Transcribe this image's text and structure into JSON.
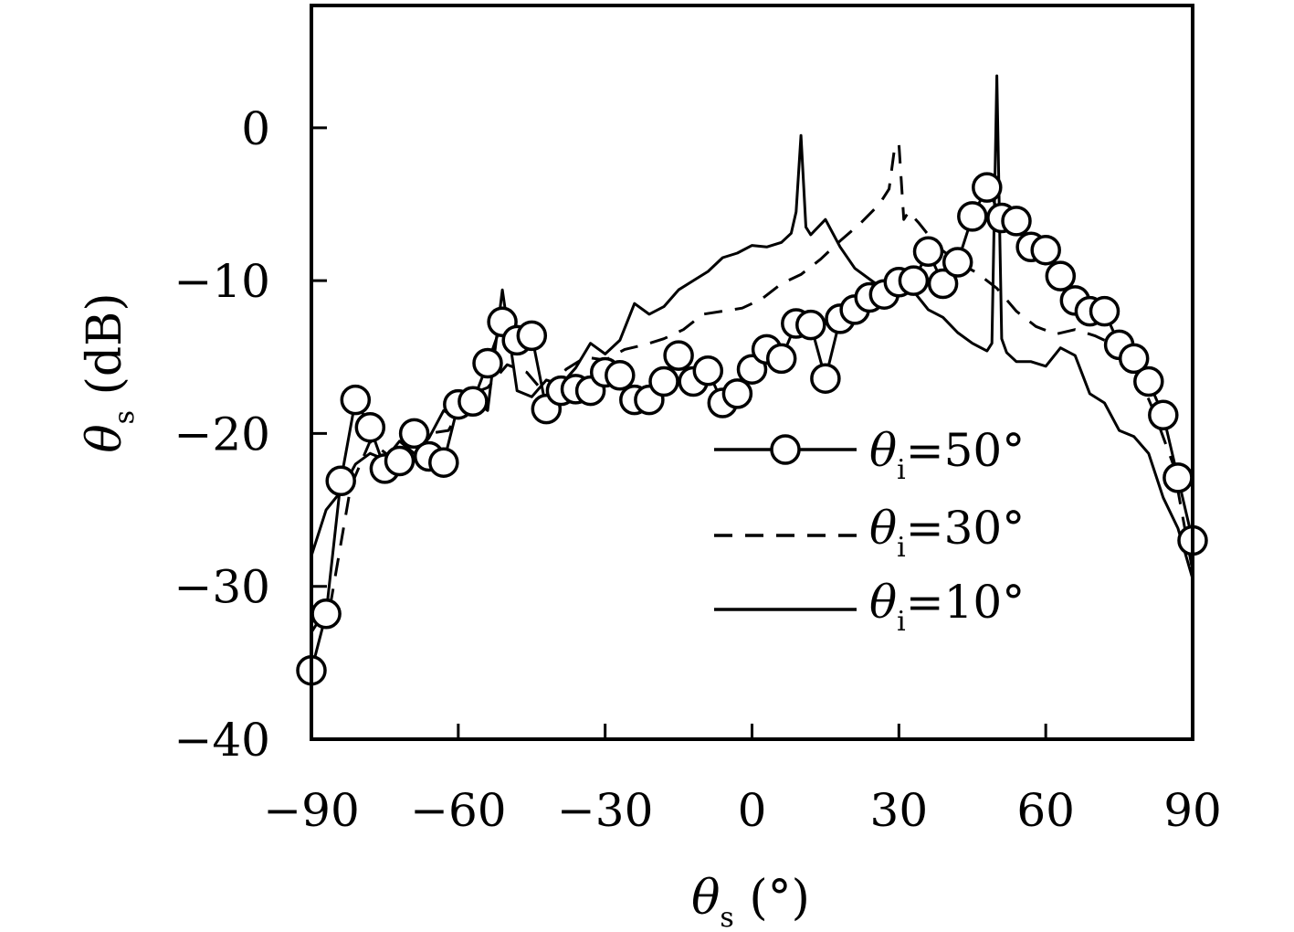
{
  "chart_data": {
    "type": "line",
    "xlabel": {
      "symbol": "θ",
      "sub": "s",
      "unit": " (°)"
    },
    "ylabel": {
      "symbol": "θ",
      "sub": "s",
      "unit": " (dB)"
    },
    "xlim": [
      -90,
      90
    ],
    "ylim": [
      -40,
      8
    ],
    "xticks": [
      -90,
      -60,
      -30,
      0,
      30,
      60,
      90
    ],
    "xtick_labels": [
      "−90",
      "−60",
      "−30",
      "0",
      "30",
      "60",
      "90"
    ],
    "yticks": [
      -40,
      -30,
      -20,
      -10,
      0
    ],
    "ytick_labels": [
      "−40",
      "−30",
      "−20",
      "−10",
      "0"
    ],
    "grid": false,
    "legend_position": "right",
    "colors": {
      "line": "#000000",
      "marker_fill": "#ffffff"
    },
    "series": [
      {
        "name_symbol": "θ",
        "name_sub": "i",
        "name_value": "=50°",
        "style": "solid-circle",
        "x": [
          -90,
          -87,
          -84,
          -81,
          -78,
          -75,
          -72,
          -69,
          -66,
          -63,
          -60,
          -57,
          -54,
          -51,
          -48,
          -45,
          -42,
          -39,
          -36,
          -33,
          -30,
          -27,
          -24,
          -21,
          -18,
          -15,
          -12,
          -9,
          -6,
          -3,
          0,
          3,
          6,
          9,
          12,
          15,
          18,
          21,
          24,
          27,
          30,
          33,
          36,
          39,
          42,
          45,
          48,
          51,
          54,
          57,
          60,
          63,
          66,
          69,
          72,
          75,
          78,
          81,
          84,
          87,
          90
        ],
        "y": [
          -35.5,
          -31.8,
          -23.1,
          -17.8,
          -19.6,
          -22.3,
          -21.8,
          -20,
          -21.5,
          -21.9,
          -18.1,
          -17.9,
          -15.4,
          -12.7,
          -13.9,
          -13.6,
          -18.4,
          -17.2,
          -17.1,
          -17.2,
          -16,
          -16.2,
          -17.8,
          -17.8,
          -16.6,
          -14.9,
          -16.6,
          -15.9,
          -18,
          -17.4,
          -15.8,
          -14.5,
          -15.1,
          -12.8,
          -12.9,
          -16.4,
          -12.5,
          -11.9,
          -11.1,
          -10.9,
          -10.1,
          -10,
          -8.1,
          -10.2,
          -8.8,
          -5.8,
          -3.9,
          -5.9,
          -6.1,
          -7.8,
          -8,
          -9.7,
          -11.3,
          -12,
          -12,
          -14.2,
          -15.1,
          -16.6,
          -18.8,
          -22.9,
          -27
        ]
      },
      {
        "name_symbol": "θ",
        "name_sub": "i",
        "name_value": "=30°",
        "style": "dashed",
        "x": [
          -90,
          -86,
          -82,
          -78,
          -74,
          -70,
          -66,
          -62,
          -58,
          -54,
          -50,
          -46,
          -42,
          -38,
          -34,
          -30,
          -26,
          -22,
          -18,
          -14,
          -10,
          -6,
          -2,
          2,
          6,
          10,
          14,
          18,
          22,
          26,
          28,
          29,
          30,
          31,
          32,
          34,
          38,
          42,
          46,
          50,
          54,
          58,
          62,
          66,
          70,
          74,
          78,
          82,
          86,
          90
        ],
        "y": [
          -33,
          -31,
          -23.5,
          -20.5,
          -21.5,
          -20.8,
          -20,
          -19.8,
          -17.5,
          -17,
          -15.5,
          -16,
          -17.5,
          -15.8,
          -15,
          -15.2,
          -14.5,
          -14.2,
          -13.8,
          -13.2,
          -12.2,
          -12,
          -11.8,
          -11.2,
          -10.2,
          -9.6,
          -8.6,
          -7.4,
          -6.3,
          -5,
          -4,
          -1.6,
          -1,
          -6,
          -5.5,
          -6.2,
          -7.8,
          -8.8,
          -9.5,
          -10.5,
          -12,
          -13,
          -13.5,
          -13.2,
          -13.6,
          -14.2,
          -15.5,
          -18.5,
          -22,
          -29
        ]
      },
      {
        "name_symbol": "θ",
        "name_sub": "i",
        "name_value": "=10°",
        "style": "solid",
        "x": [
          -90,
          -87,
          -84,
          -81,
          -78,
          -75,
          -72,
          -69,
          -66,
          -63,
          -60,
          -57,
          -54,
          -51,
          -48,
          -45,
          -42,
          -39,
          -36,
          -33,
          -30,
          -27,
          -24,
          -21,
          -18,
          -15,
          -12,
          -9,
          -6,
          -3,
          0,
          3,
          6,
          8,
          9,
          10,
          11,
          12,
          15,
          18,
          21,
          24,
          27,
          30,
          33,
          36,
          39,
          42,
          45,
          48,
          49,
          50,
          51,
          52,
          54,
          57,
          60,
          63,
          66,
          69,
          72,
          75,
          78,
          81,
          84,
          87,
          90
        ],
        "y": [
          -28,
          -25,
          -23.8,
          -22,
          -21.3,
          -21.7,
          -20.5,
          -21.3,
          -20.3,
          -18.5,
          -19,
          -17.8,
          -18.5,
          -10.6,
          -17.2,
          -17.6,
          -16.5,
          -16.8,
          -15.7,
          -14.1,
          -14.8,
          -13.9,
          -11.5,
          -12.2,
          -11.7,
          -10.6,
          -10,
          -9.4,
          -8.5,
          -8.2,
          -7.7,
          -7.8,
          -7.5,
          -6.9,
          -5.5,
          -0.5,
          -6.5,
          -7,
          -6,
          -7.8,
          -9.2,
          -9.9,
          -10.6,
          -10.9,
          -10.7,
          -11.9,
          -12.4,
          -13.4,
          -14.1,
          -14.6,
          -14.1,
          3.4,
          -13.8,
          -14.7,
          -15.3,
          -15.3,
          -15.6,
          -14.4,
          -14.9,
          -17.4,
          -18,
          -19.8,
          -20.2,
          -21.3,
          -24.2,
          -26.2,
          -29.5
        ]
      }
    ]
  }
}
